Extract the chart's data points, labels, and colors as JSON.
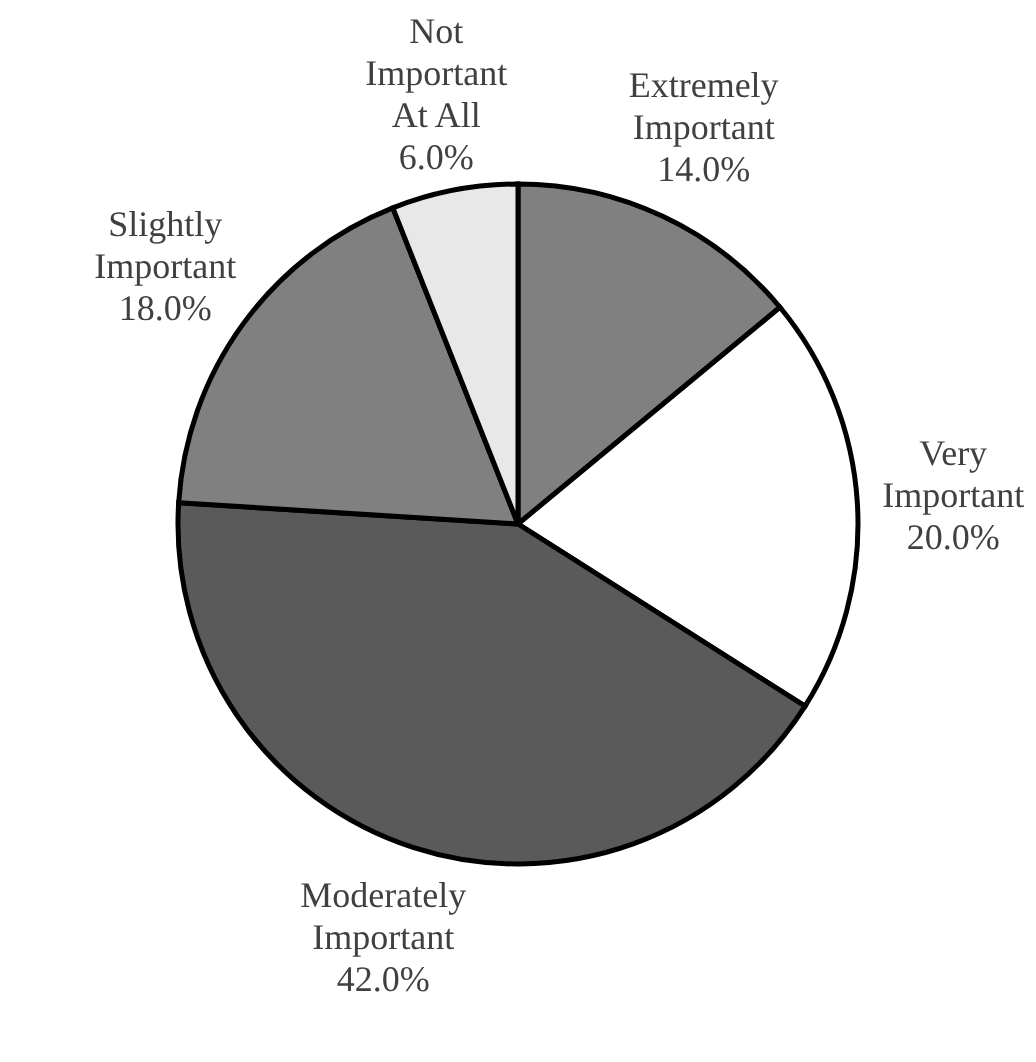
{
  "chart_data": {
    "type": "pie",
    "categories": [
      "Extremely Important",
      "Very Important",
      "Moderately Important",
      "Slightly Important",
      "Not Important At All"
    ],
    "values": [
      14.0,
      20.0,
      42.0,
      18.0,
      6.0
    ],
    "value_labels": [
      "14.0%",
      "20.0%",
      "42.0%",
      "18.0%",
      "6.0%"
    ],
    "colors": [
      "#808080",
      "#ffffff",
      "#5a5a5a",
      "#808080",
      "#e8e8e8"
    ]
  }
}
